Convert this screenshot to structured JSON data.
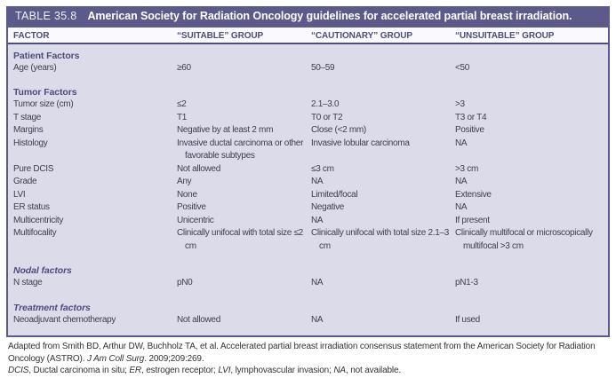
{
  "table": {
    "label": "TABLE 35.8",
    "title": "American Society for Radiation Oncology guidelines for accelerated partial breast irradiation.",
    "columns": [
      "FACTOR",
      "“SUITABLE” GROUP",
      "“CAUTIONARY” GROUP",
      "“UNSUITABLE” GROUP"
    ],
    "sections": [
      {
        "heading": "Patient Factors",
        "style": "bold",
        "rows": [
          {
            "factor": "Age (years)",
            "suitable": "≥60",
            "cautionary": "50–59",
            "unsuitable": "<50"
          }
        ]
      },
      {
        "heading": "Tumor Factors",
        "style": "bold",
        "rows": [
          {
            "factor": "Tumor size (cm)",
            "suitable": "≤2",
            "cautionary": "2.1–3.0",
            "unsuitable": ">3"
          },
          {
            "factor": "T stage",
            "suitable": "T1",
            "cautionary": "T0 or T2",
            "unsuitable": "T3 or T4"
          },
          {
            "factor": "Margins",
            "suitable": "Negative by at least 2 mm",
            "cautionary": "Close (<2 mm)",
            "unsuitable": "Positive"
          },
          {
            "factor": "Histology",
            "suitable": "Invasive ductal carcinoma or other favorable subtypes",
            "cautionary": "Invasive lobular carcinoma",
            "unsuitable": "NA"
          },
          {
            "factor": "Pure DCIS",
            "suitable": "Not allowed",
            "cautionary": "≤3 cm",
            "unsuitable": ">3 cm"
          },
          {
            "factor": "Grade",
            "suitable": "Any",
            "cautionary": "NA",
            "unsuitable": "NA"
          },
          {
            "factor": "LVI",
            "suitable": "None",
            "cautionary": "Limited/focal",
            "unsuitable": "Extensive"
          },
          {
            "factor": "ER status",
            "suitable": "Positive",
            "cautionary": "Negative",
            "unsuitable": "NA"
          },
          {
            "factor": "Multicentricity",
            "suitable": "Unicentric",
            "cautionary": "NA",
            "unsuitable": "If present"
          },
          {
            "factor": "Multifocality",
            "suitable": "Clinically unifocal with total size ≤2 cm",
            "cautionary": "Clinically unifocal with total size 2.1–3 cm",
            "unsuitable": "Clinically multifocal or microscopically multifocal >3 cm"
          }
        ]
      },
      {
        "heading": "Nodal factors",
        "style": "bold-italic",
        "rows": [
          {
            "factor": "N stage",
            "suitable": "pN0",
            "cautionary": "NA",
            "unsuitable": "pN1-3"
          }
        ]
      },
      {
        "heading": "Treatment factors",
        "style": "bold-italic",
        "rows": [
          {
            "factor": "Neoadjuvant chemotherapy",
            "suitable": "Not allowed",
            "cautionary": "NA",
            "unsuitable": "If used"
          }
        ]
      }
    ]
  },
  "footnotes": {
    "source_prefix": "Adapted from Smith BD, Arthur DW, Buchholz TA, et al. Accelerated partial breast irradiation consensus statement from the American Society for Radiation Oncology (ASTRO). ",
    "source_journal": "J Am Coll Surg",
    "source_suffix": ". 2009;209:269.",
    "abbreviations": [
      {
        "text": "DCIS",
        "italic": true
      },
      {
        "text": ", Ductal carcinoma in situ; ",
        "italic": false
      },
      {
        "text": "ER",
        "italic": true
      },
      {
        "text": ", estrogen receptor; ",
        "italic": false
      },
      {
        "text": "LVI",
        "italic": true
      },
      {
        "text": ", lymphovascular invasion; ",
        "italic": false
      },
      {
        "text": "NA",
        "italic": true
      },
      {
        "text": ", not available.",
        "italic": false
      }
    ]
  },
  "colors": {
    "title_bar": "#5b5a8a",
    "body_background": "#dcdbe9",
    "header_text": "#4d4c7d",
    "body_text": "#3e3e52"
  }
}
